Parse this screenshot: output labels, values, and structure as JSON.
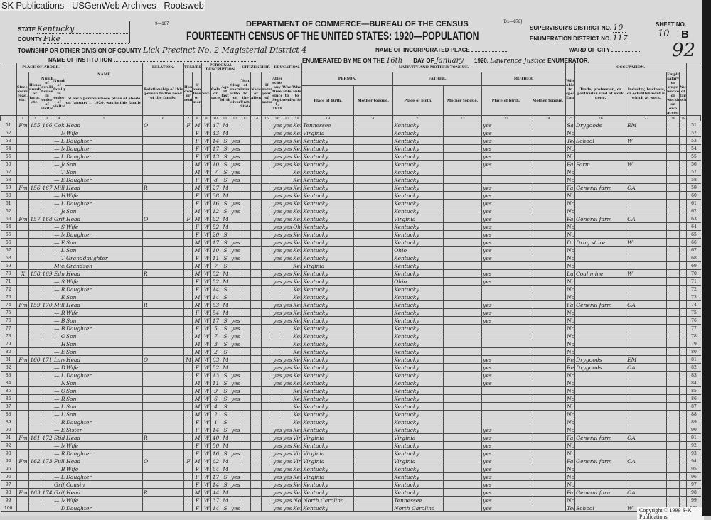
{
  "watermark": "SK Publications - USGenWeb Archives - Rootsweb",
  "copyright": "Copyright © 1999 S-K Publications",
  "form_no": "9—187",
  "form_code": "[D1—878]",
  "header": {
    "department": "DEPARTMENT OF COMMERCE—BUREAU OF THE CENSUS",
    "title": "FOURTEENTH CENSUS OF THE UNITED STATES: 1920—POPULATION",
    "state_label": "State",
    "state_value": "Kentucky",
    "county_label": "County",
    "county_value": "Pike",
    "township_label": "Township or other division of county",
    "township_value": "Lick Precinct No. 2 Magisterial District 4",
    "institution_label": "Name of Institution",
    "institution_value": "",
    "incorporated_label": "Name of incorporated place",
    "incorporated_value": "",
    "enumerated_label": "Enumerated by me on the",
    "enumerated_day": "16th",
    "day_of_label": "day of",
    "enumerated_month": "January",
    "year": "1920.",
    "enumerator_name": "Lawrence Justice",
    "enumerator_label": "Enumerator.",
    "supervisor_label": "Supervisor's District No.",
    "supervisor_value": "10",
    "ed_label": "Enumeration District No.",
    "ed_value": "117",
    "ward_label": "Ward of city",
    "ward_value": "",
    "sheet_label": "Sheet No.",
    "sheet_value": "10",
    "sheet_side": "B",
    "stamp": "92"
  },
  "column_groups": {
    "abode": "PLACE OF ABODE.",
    "name": "NAME",
    "relation": "RELATION.",
    "tenure": "TENURE.",
    "personal": "PERSONAL DESCRIPTION.",
    "citizenship": "CITIZENSHIP.",
    "education": "EDUCATION.",
    "nativity": "NATIVITY AND MOTHER TONGUE.",
    "person": "PERSON.",
    "father": "FATHER.",
    "mother": "MOTHER.",
    "occupation": "OCCUPATION."
  },
  "column_headers": {
    "street": "Street, avenue, road, etc.",
    "house": "House number or farm, etc.",
    "dwelling": "Number of dwelling house in order of visitation.",
    "family": "Number of family in order of visitation.",
    "name": "of each person whose place of abode on January 1, 1920, was in this family.",
    "relation": "Relationship of this person to the head of the family.",
    "owned": "Home owned or rented.",
    "mortgaged": "If owned, free or mortgaged.",
    "sex": "Sex.",
    "race": "Color or race.",
    "age": "Age at last birthday.",
    "marital": "Single, married, widowed, or divorced.",
    "immigration": "Year of immigration to the United States.",
    "naturalized": "Naturalized or alien.",
    "nat_year": "If naturalized, year of naturalization.",
    "school": "Attended school any time since Sept. 1, 1919.",
    "read": "Whether able to read.",
    "write": "Whether able to write.",
    "birth": "Place of birth.",
    "tongue": "Mother tongue.",
    "english": "Whether able to speak English.",
    "trade": "Trade, profession, or particular kind of work done.",
    "industry": "Industry, business, or establishment in which at work.",
    "class": "Employer, salary or wage worker, or working on own account.",
    "farm": "Number of farm schedule."
  },
  "column_numbers": [
    "1",
    "2",
    "3",
    "4",
    "5",
    "6",
    "7",
    "8",
    "9",
    "10",
    "11",
    "12",
    "13",
    "14",
    "15",
    "16",
    "17",
    "18",
    "19",
    "20",
    "21",
    "22",
    "23",
    "24",
    "25",
    "26",
    "27",
    "28",
    "29"
  ],
  "rows": [
    [
      "51",
      "Fm",
      "155",
      "166",
      "Coker, Jennings",
      "Head",
      "O",
      "F",
      "M",
      "W",
      "47",
      "M",
      "",
      "yes",
      "yes",
      "Kentucky",
      "Tennessee",
      "Kentucky",
      "yes",
      "Salesman",
      "Drygoods",
      "EM"
    ],
    [
      "52",
      "",
      "",
      "",
      "— Mary J",
      "Wife",
      "",
      "",
      "F",
      "W",
      "43",
      "M",
      "",
      "yes",
      "yes",
      "Kentucky",
      "Virginia",
      "Kentucky",
      "yes",
      "None",
      "",
      ""
    ],
    [
      "53",
      "",
      "",
      "",
      "— Lillie",
      "Daughter",
      "",
      "",
      "F",
      "W",
      "14",
      "S",
      "yes",
      "yes",
      "yes",
      "Kentucky",
      "Kentucky",
      "Kentucky",
      "yes",
      "Teaching",
      "School",
      "W"
    ],
    [
      "54",
      "",
      "",
      "",
      "— Minnie",
      "Daughter",
      "",
      "",
      "F",
      "W",
      "17",
      "S",
      "yes",
      "yes",
      "yes",
      "Kentucky",
      "Kentucky",
      "Kentucky",
      "yes",
      "None",
      "",
      ""
    ],
    [
      "55",
      "",
      "",
      "",
      "— Louise",
      "Daughter",
      "",
      "",
      "F",
      "W",
      "13",
      "S",
      "yes",
      "yes",
      "yes",
      "Kentucky",
      "Kentucky",
      "Kentucky",
      "yes",
      "None",
      "",
      ""
    ],
    [
      "56",
      "",
      "",
      "",
      "— James",
      "Son",
      "",
      "",
      "M",
      "W",
      "10",
      "S",
      "yes",
      "yes",
      "yes",
      "Kentucky",
      "Kentucky",
      "Kentucky",
      "yes",
      "Farm",
      "Farm",
      "W"
    ],
    [
      "57",
      "",
      "",
      "",
      "— Troy",
      "Son",
      "",
      "",
      "M",
      "W",
      "7",
      "S",
      "yes",
      "",
      "",
      "Kentucky",
      "Kentucky",
      "Kentucky",
      "",
      "None",
      "",
      ""
    ],
    [
      "58",
      "",
      "",
      "",
      "— Ella",
      "Daughter",
      "",
      "",
      "F",
      "W",
      "8",
      "S",
      "yes",
      "",
      "",
      "Kentucky",
      "Kentucky",
      "Kentucky",
      "",
      "None",
      "",
      ""
    ],
    [
      "59",
      "Fm",
      "156",
      "167",
      "Miller, Melvin",
      "Head",
      "R",
      "",
      "M",
      "W",
      "27",
      "M",
      "",
      "yes",
      "yes",
      "Kentucky",
      "Kentucky",
      "Kentucky",
      "yes",
      "Farmer",
      "General farm",
      "OA"
    ],
    [
      "60",
      "",
      "",
      "",
      "— Hermania",
      "Wife",
      "",
      "",
      "F",
      "W",
      "38",
      "M",
      "",
      "yes",
      "yes",
      "Kentucky",
      "Kentucky",
      "Kentucky",
      "yes",
      "None",
      "",
      ""
    ],
    [
      "61",
      "",
      "",
      "",
      "— Lillie",
      "Daughter",
      "",
      "",
      "F",
      "W",
      "16",
      "S",
      "yes",
      "yes",
      "yes",
      "Kentucky",
      "Kentucky",
      "Kentucky",
      "yes",
      "None",
      "",
      ""
    ],
    [
      "62",
      "",
      "",
      "",
      "— Jennings",
      "Son",
      "",
      "",
      "M",
      "W",
      "12",
      "S",
      "yes",
      "yes",
      "yes",
      "Kentucky",
      "Kentucky",
      "Kentucky",
      "yes",
      "None",
      "",
      ""
    ],
    [
      "63",
      "Fm",
      "157",
      "168",
      "Griffey, William",
      "Head",
      "O",
      "F",
      "M",
      "W",
      "62",
      "M",
      "",
      "yes",
      "yes",
      "Kentucky",
      "Kentucky",
      "Virginia",
      "yes",
      "Farmer",
      "General farm",
      "OA"
    ],
    [
      "64",
      "",
      "",
      "",
      "— Sarah",
      "Wife",
      "",
      "",
      "F",
      "W",
      "52",
      "M",
      "",
      "yes",
      "yes",
      "Ohio",
      "Kentucky",
      "Kentucky",
      "yes",
      "None",
      "",
      ""
    ],
    [
      "65",
      "",
      "",
      "",
      "— Malinda",
      "Daughter",
      "",
      "",
      "F",
      "W",
      "20",
      "S",
      "",
      "yes",
      "yes",
      "Kentucky",
      "Kentucky",
      "Kentucky",
      "yes",
      "None",
      "",
      ""
    ],
    [
      "66",
      "",
      "",
      "",
      "— Edward",
      "Son",
      "",
      "",
      "M",
      "W",
      "17",
      "S",
      "yes",
      "yes",
      "yes",
      "Kentucky",
      "Kentucky",
      "Kentucky",
      "yes",
      "Drummer",
      "Drug store",
      "W"
    ],
    [
      "67",
      "",
      "",
      "",
      "— Leon",
      "Son",
      "",
      "",
      "M",
      "W",
      "10",
      "S",
      "yes",
      "yes",
      "yes",
      "Kentucky",
      "Kentucky",
      "Ohio",
      "yes",
      "None",
      "",
      ""
    ],
    [
      "68",
      "",
      "",
      "",
      "— Thelma",
      "Granddaughter",
      "",
      "",
      "F",
      "W",
      "11",
      "S",
      "yes",
      "yes",
      "yes",
      "Kentucky",
      "Kentucky",
      "Kentucky",
      "yes",
      "None",
      "",
      ""
    ],
    [
      "69",
      "",
      "",
      "",
      "Mickeral, George",
      "Grandson",
      "",
      "",
      "M",
      "W",
      "7",
      "S",
      "",
      "",
      "",
      "Kentucky",
      "Virginia",
      "Kentucky",
      "",
      "None",
      "",
      ""
    ],
    [
      "70",
      "X",
      "158",
      "169",
      "Edmonds, Charley",
      "Head",
      "R",
      "",
      "M",
      "W",
      "52",
      "M",
      "",
      "yes",
      "yes",
      "Kentucky",
      "Kentucky",
      "Kentucky",
      "yes",
      "Laborer",
      "Coal mine",
      "W"
    ],
    [
      "71",
      "",
      "",
      "",
      "— Sophia",
      "Wife",
      "",
      "",
      "F",
      "W",
      "52",
      "M",
      "",
      "yes",
      "yes",
      "Kentucky",
      "Kentucky",
      "Ohio",
      "yes",
      "None",
      "",
      ""
    ],
    [
      "72",
      "",
      "",
      "",
      "— Rosey",
      "Daughter",
      "",
      "",
      "F",
      "W",
      "14",
      "S",
      "",
      "",
      "",
      "Kentucky",
      "Kentucky",
      "Kentucky",
      "",
      "None",
      "",
      ""
    ],
    [
      "73",
      "",
      "",
      "",
      "— Ezekiel",
      "Son",
      "",
      "",
      "M",
      "W",
      "14",
      "S",
      "",
      "",
      "",
      "Kentucky",
      "Kentucky",
      "Kentucky",
      "",
      "None",
      "",
      ""
    ],
    [
      "74",
      "Fm",
      "159",
      "170",
      "Miller, Melvin",
      "Head",
      "R",
      "",
      "M",
      "W",
      "53",
      "M",
      "",
      "yes",
      "yes",
      "Kentucky",
      "Kentucky",
      "Kentucky",
      "yes",
      "Farmer",
      "General farm",
      "OA"
    ],
    [
      "75",
      "",
      "",
      "",
      "— Rosa",
      "Wife",
      "",
      "",
      "F",
      "W",
      "54",
      "M",
      "",
      "yes",
      "yes",
      "Kentucky",
      "Kentucky",
      "Kentucky",
      "yes",
      "None",
      "",
      ""
    ],
    [
      "76",
      "",
      "",
      "",
      "— Brooks",
      "Son",
      "",
      "",
      "M",
      "W",
      "17",
      "S",
      "yes",
      "yes",
      "yes",
      "Kentucky",
      "Kentucky",
      "Kentucky",
      "yes",
      "None",
      "",
      ""
    ],
    [
      "77",
      "",
      "",
      "",
      "— Beulah",
      "Daughter",
      "",
      "",
      "F",
      "W",
      "5",
      "S",
      "yes",
      "",
      "",
      "Kentucky",
      "Kentucky",
      "Kentucky",
      "",
      "None",
      "",
      ""
    ],
    [
      "78",
      "",
      "",
      "",
      "— Ottis",
      "Son",
      "",
      "",
      "M",
      "W",
      "7",
      "S",
      "yes",
      "",
      "",
      "Kentucky",
      "Kentucky",
      "Kentucky",
      "",
      "None",
      "",
      ""
    ],
    [
      "79",
      "",
      "",
      "",
      "— Henry",
      "Son",
      "",
      "",
      "M",
      "W",
      "3",
      "S",
      "yes",
      "",
      "",
      "Kentucky",
      "Kentucky",
      "Kentucky",
      "",
      "None",
      "",
      ""
    ],
    [
      "80",
      "",
      "",
      "",
      "— Elbert",
      "Son",
      "",
      "",
      "M",
      "W",
      "2",
      "S",
      "",
      "",
      "",
      "Kentucky",
      "Kentucky",
      "Kentucky",
      "",
      "None",
      "",
      ""
    ],
    [
      "81",
      "Fm",
      "160",
      "171",
      "Lane, William Jr",
      "Head",
      "O",
      "M",
      "M",
      "W",
      "63",
      "M",
      "",
      "yes",
      "yes",
      "Kentucky",
      "Kentucky",
      "Kentucky",
      "yes",
      "Retail merchant",
      "Drygoods",
      "EM"
    ],
    [
      "82",
      "",
      "",
      "",
      "— Daisy C",
      "Wife",
      "",
      "",
      "F",
      "W",
      "52",
      "M",
      "",
      "yes",
      "yes",
      "Kentucky",
      "Kentucky",
      "Kentucky",
      "yes",
      "Retail merchant",
      "Drygoods",
      "OA"
    ],
    [
      "83",
      "",
      "",
      "",
      "— Lena",
      "Daughter",
      "",
      "",
      "F",
      "W",
      "13",
      "S",
      "yes",
      "yes",
      "yes",
      "Kentucky",
      "Kentucky",
      "Kentucky",
      "yes",
      "None",
      "",
      ""
    ],
    [
      "84",
      "",
      "",
      "",
      "— Neil",
      "Son",
      "",
      "",
      "M",
      "W",
      "11",
      "S",
      "yes",
      "yes",
      "yes",
      "Kentucky",
      "Kentucky",
      "Kentucky",
      "yes",
      "None",
      "",
      ""
    ],
    [
      "85",
      "",
      "",
      "",
      "— Oren",
      "Son",
      "",
      "",
      "M",
      "W",
      "9",
      "S",
      "yes",
      "",
      "",
      "Kentucky",
      "Kentucky",
      "Kentucky",
      "",
      "None",
      "",
      ""
    ],
    [
      "86",
      "",
      "",
      "",
      "— Ron",
      "Son",
      "",
      "",
      "M",
      "W",
      "6",
      "S",
      "yes",
      "",
      "",
      "Kentucky",
      "Kentucky",
      "Kentucky",
      "",
      "None",
      "",
      ""
    ],
    [
      "87",
      "",
      "",
      "",
      "— Lil",
      "Son",
      "",
      "",
      "M",
      "W",
      "4",
      "S",
      "",
      "",
      "",
      "Kentucky",
      "Kentucky",
      "Kentucky",
      "",
      "None",
      "",
      ""
    ],
    [
      "88",
      "",
      "",
      "",
      "— Linden",
      "Son",
      "",
      "",
      "M",
      "W",
      "2",
      "S",
      "",
      "",
      "",
      "Kentucky",
      "Kentucky",
      "Kentucky",
      "",
      "None",
      "",
      ""
    ],
    [
      "89",
      "",
      "",
      "",
      "— Rose",
      "Daughter",
      "",
      "",
      "F",
      "W",
      "1",
      "S",
      "",
      "",
      "",
      "Kentucky",
      "Kentucky",
      "Kentucky",
      "",
      "None",
      "",
      ""
    ],
    [
      "90",
      "",
      "",
      "",
      "— Elnora",
      "Sister",
      "",
      "",
      "F",
      "W",
      "14",
      "S",
      "yes",
      "yes",
      "yes",
      "Kentucky",
      "Kentucky",
      "Kentucky",
      "yes",
      "None",
      "",
      ""
    ],
    [
      "91",
      "Fm",
      "161",
      "172",
      "Stidham, Jeff",
      "Head",
      "R",
      "",
      "M",
      "W",
      "40",
      "M",
      "",
      "yes",
      "yes",
      "Virginia",
      "Virginia",
      "Virginia",
      "yes",
      "Farmer",
      "General farm",
      "OA"
    ],
    [
      "92",
      "",
      "",
      "",
      "— Mandy",
      "Wife",
      "",
      "",
      "F",
      "W",
      "50",
      "M",
      "",
      "yes",
      "yes",
      "Kentucky",
      "Kentucky",
      "Kentucky",
      "yes",
      "None",
      "",
      ""
    ],
    [
      "93",
      "",
      "",
      "",
      "— Rosie",
      "Daughter",
      "",
      "",
      "F",
      "W",
      "16",
      "S",
      "yes",
      "yes",
      "yes",
      "Virginia",
      "Virginia",
      "Kentucky",
      "yes",
      "None",
      "",
      ""
    ],
    [
      "94",
      "Fm",
      "162",
      "173",
      "Fuller, Elijah",
      "Head",
      "O",
      "F",
      "M",
      "W",
      "62",
      "M",
      "",
      "yes",
      "yes",
      "Virginia",
      "Virginia",
      "Virginia",
      "yes",
      "Farmer",
      "General farm",
      "OA"
    ],
    [
      "95",
      "",
      "",
      "",
      "— Bilda",
      "Wife",
      "",
      "",
      "F",
      "W",
      "64",
      "M",
      "",
      "yes",
      "yes",
      "Kentucky",
      "Kentucky",
      "Kentucky",
      "yes",
      "None",
      "",
      ""
    ],
    [
      "96",
      "",
      "",
      "",
      "— Lucinda",
      "Daughter",
      "",
      "",
      "F",
      "W",
      "17",
      "S",
      "yes",
      "yes",
      "yes",
      "Kentucky",
      "Virginia",
      "Kentucky",
      "yes",
      "None",
      "",
      ""
    ],
    [
      "97",
      "",
      "",
      "",
      "Griffey, Isabelle",
      "Cousin",
      "",
      "",
      "F",
      "W",
      "14",
      "S",
      "yes",
      "yes",
      "yes",
      "Kentucky",
      "Kentucky",
      "Kentucky",
      "yes",
      "None",
      "",
      ""
    ],
    [
      "98",
      "Fm",
      "163",
      "174",
      "Griffey, Wesley",
      "Head",
      "R",
      "",
      "M",
      "W",
      "44",
      "M",
      "",
      "yes",
      "yes",
      "Kentucky",
      "Kentucky",
      "Kentucky",
      "yes",
      "Farmer",
      "General farm",
      "OA"
    ],
    [
      "99",
      "",
      "",
      "",
      "— Martha",
      "Wife",
      "",
      "",
      "F",
      "W",
      "37",
      "M",
      "",
      "yes",
      "yes",
      "North Carolina",
      "North Carolina",
      "Tennessee",
      "yes",
      "None",
      "",
      ""
    ],
    [
      "100",
      "",
      "",
      "",
      "— Della",
      "Daughter",
      "",
      "",
      "F",
      "W",
      "14",
      "S",
      "yes",
      "yes",
      "yes",
      "Kentucky",
      "Kentucky",
      "North Carolina",
      "yes",
      "Teaching",
      "School",
      "W"
    ]
  ]
}
